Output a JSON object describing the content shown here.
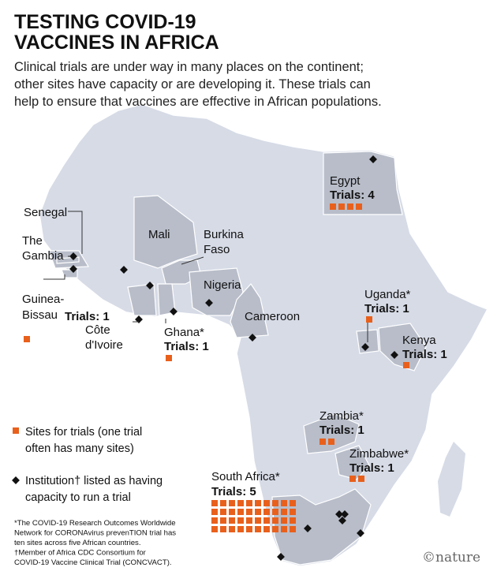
{
  "header": {
    "title_lines": [
      "TESTING COVID-19",
      "VACCINES IN AFRICA"
    ],
    "subtitle_lines": [
      "Clinical trials are under way in many places on the continent;",
      "other sites have capacity or are developing it. These trials can",
      "help to ensure that vaccines are effective in African populations."
    ]
  },
  "countries": [
    {
      "name_lines": [
        "Egypt"
      ],
      "trials": "Trials: 4",
      "sites": 4
    },
    {
      "name_lines": [
        "Guinea-",
        "Bissau"
      ],
      "trials": "Trials: 1",
      "sites": 1
    },
    {
      "name_lines": [
        "Ghana*"
      ],
      "trials": "Trials: 1",
      "sites": 1
    },
    {
      "name_lines": [
        "Uganda*"
      ],
      "trials": "Trials: 1",
      "sites": 1
    },
    {
      "name_lines": [
        "Kenya"
      ],
      "trials": "Trials: 1",
      "sites": 1
    },
    {
      "name_lines": [
        "Zambia*"
      ],
      "trials": "Trials: 1",
      "sites": 2
    },
    {
      "name_lines": [
        "Zimbabwe*"
      ],
      "trials": "Trials: 1",
      "sites": 2
    },
    {
      "name_lines": [
        "South Africa*"
      ],
      "trials": "Trials: 5",
      "sites": 40
    }
  ],
  "labels": [
    {
      "lines": [
        "Senegal"
      ]
    },
    {
      "lines": [
        "The",
        "Gambia"
      ]
    },
    {
      "lines": [
        "Mali"
      ]
    },
    {
      "lines": [
        "Burkina",
        "Faso"
      ]
    },
    {
      "lines": [
        "Côte",
        "d'Ivoire"
      ]
    },
    {
      "lines": [
        "Nigeria"
      ]
    },
    {
      "lines": [
        "Cameroon"
      ]
    }
  ],
  "legend": {
    "sites_lines": [
      "Sites for trials (one trial",
      "often has many sites)"
    ],
    "institution_lines": [
      "Institution† listed as having",
      "capacity to run a trial"
    ]
  },
  "footnotes": [
    "*The COVID-19 Research Outcomes Worldwide",
    "Network for CORONAvirus prevenTION trial has",
    "ten sites across five African countries.",
    "†Member of Africa CDC Consortium for",
    "COVID-19 Vaccine Clinical Trial (CONCVACT)."
  ],
  "credit": "©nature"
}
